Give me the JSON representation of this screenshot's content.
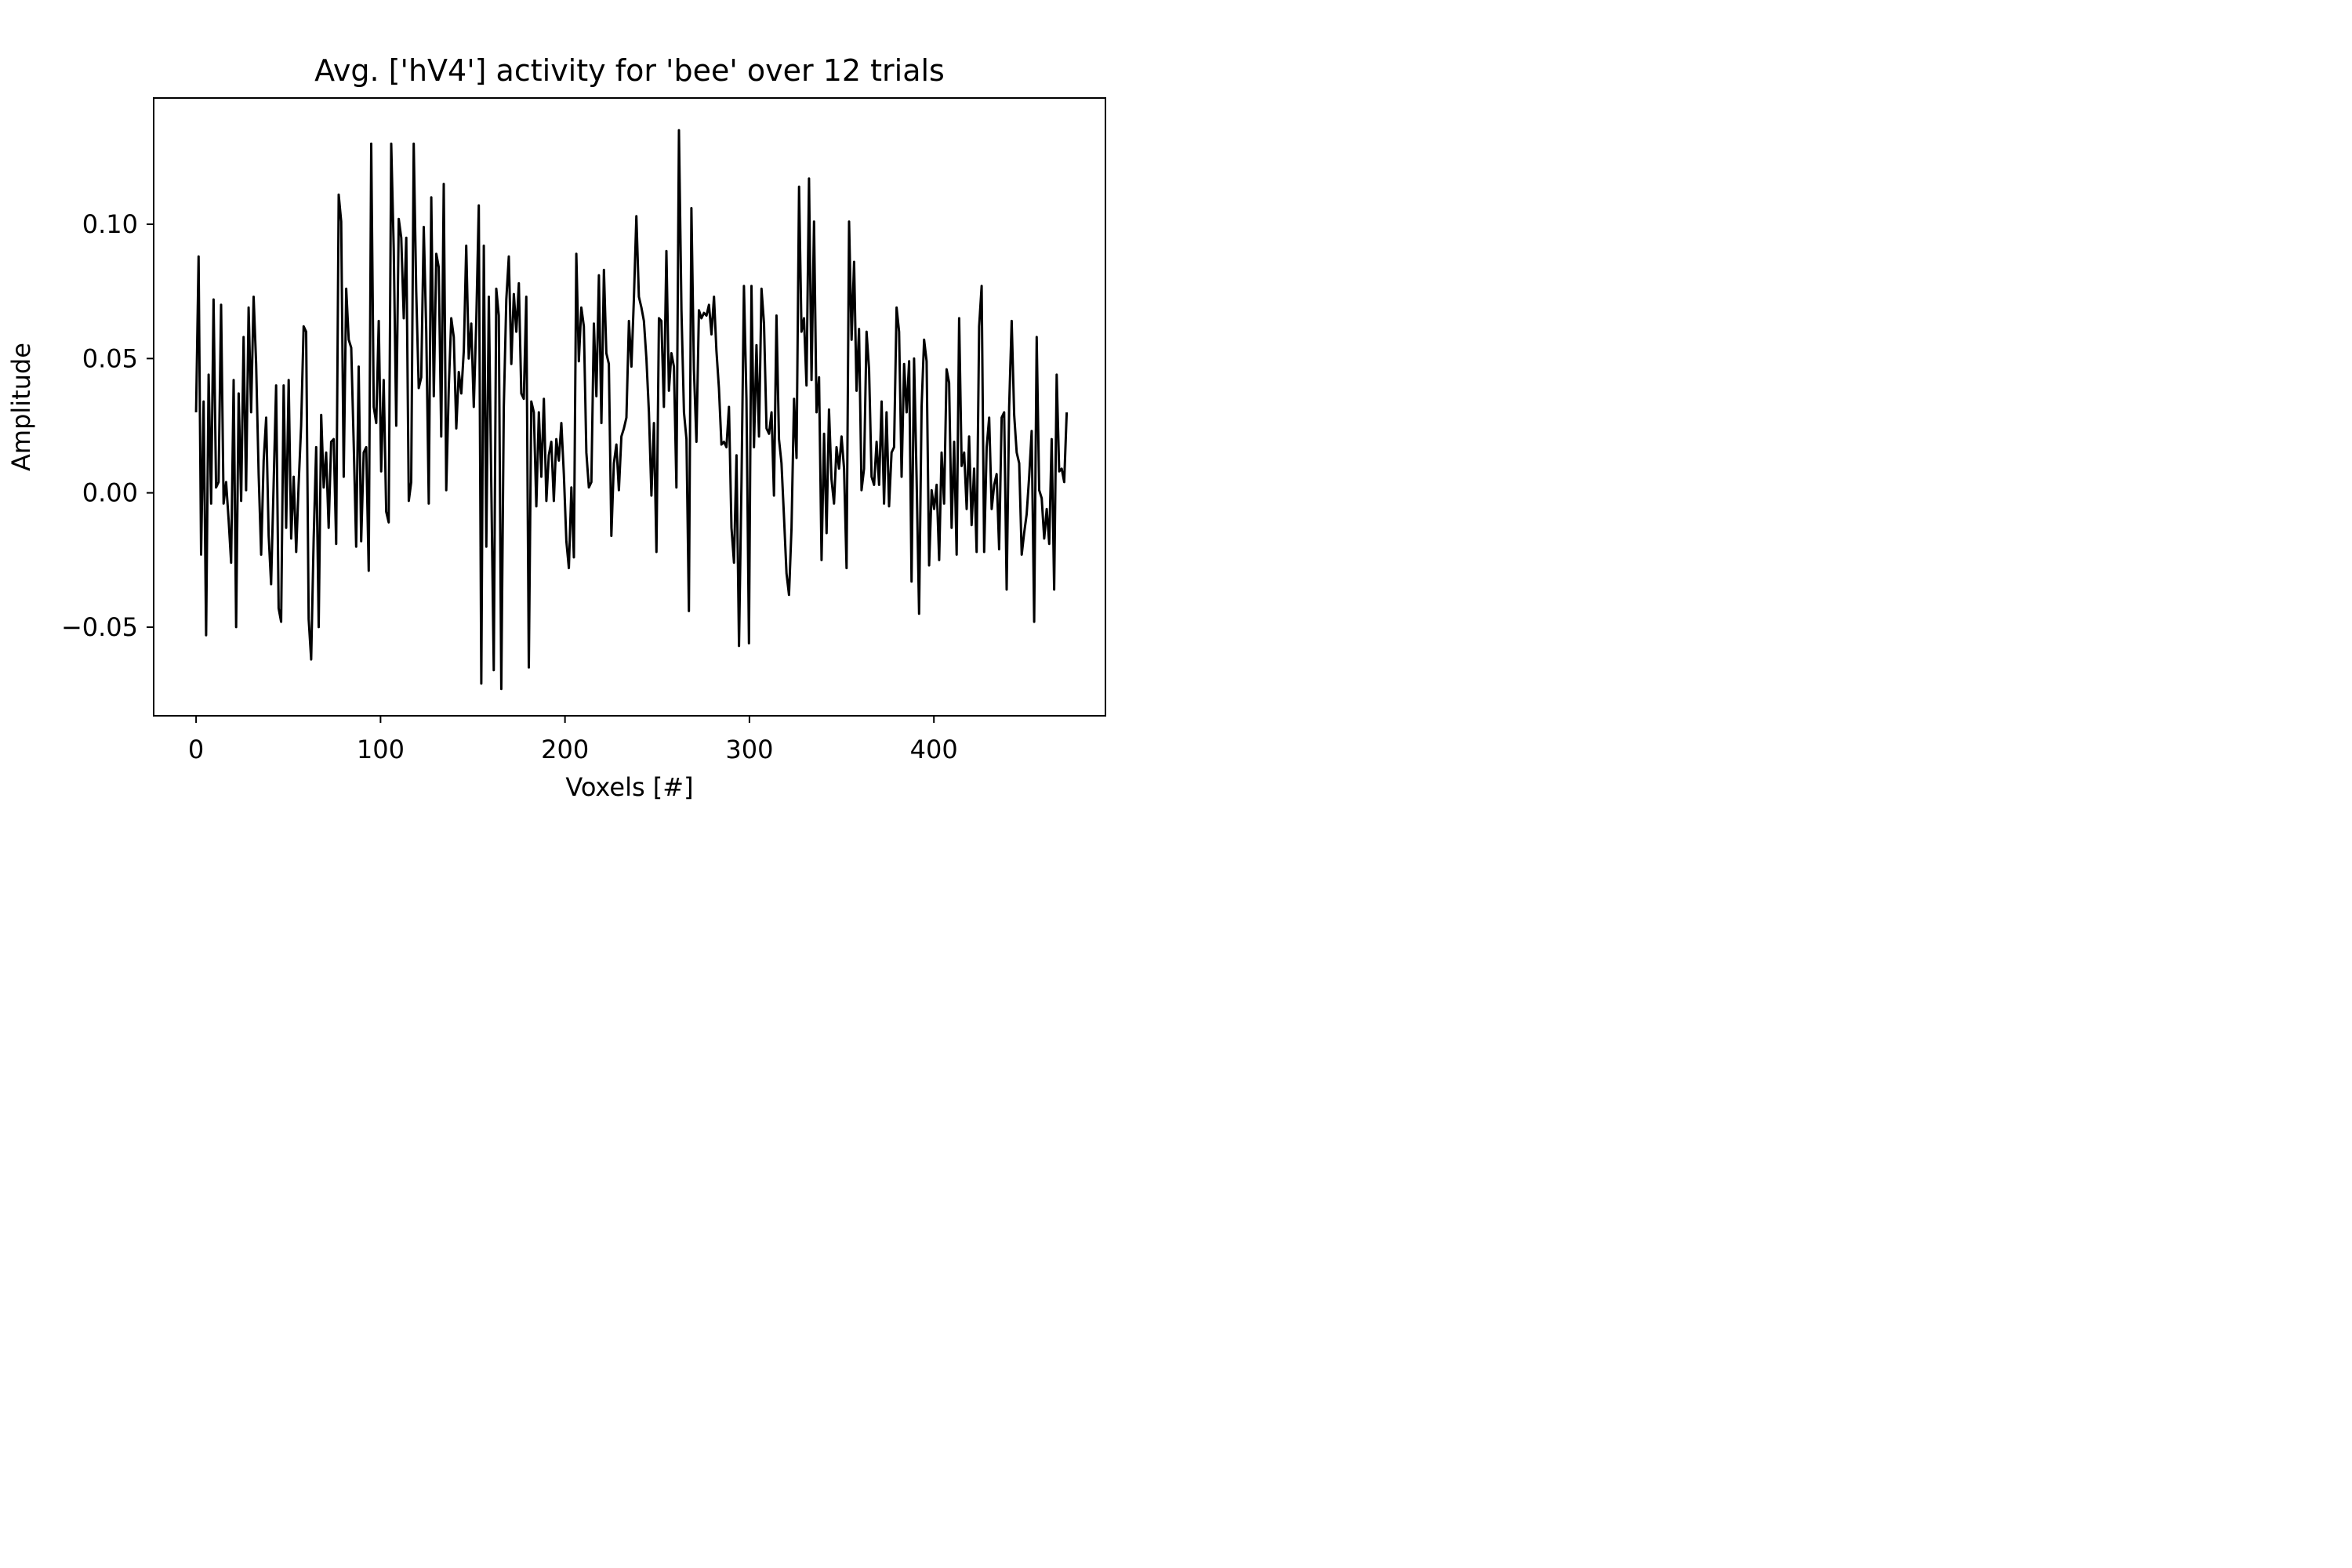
{
  "chart_data": {
    "type": "line",
    "title": "Avg. ['hV4'] activity for 'bee' over 12 trials",
    "xlabel": "Voxels [#]",
    "ylabel": "Amplitude",
    "xlim": [
      -23,
      493
    ],
    "ylim": [
      -0.083,
      0.147
    ],
    "xticks": [
      0,
      100,
      200,
      300,
      400
    ],
    "xtick_labels": [
      "0",
      "100",
      "200",
      "300",
      "400"
    ],
    "yticks": [
      -0.05,
      0.0,
      0.05,
      0.1
    ],
    "ytick_labels": [
      "−0.05",
      "0.00",
      "0.05",
      "0.10"
    ],
    "grid": false,
    "legend": false,
    "series": [
      {
        "color": "#000000",
        "x_start": 0,
        "x_step": 1,
        "y": [
          0.03,
          0.088,
          -0.023,
          0.034,
          -0.053,
          0.044,
          -0.004,
          0.072,
          0.002,
          0.004,
          0.07,
          -0.004,
          0.004,
          -0.01,
          -0.026,
          0.042,
          -0.05,
          0.037,
          -0.003,
          0.058,
          0.001,
          0.069,
          0.03,
          0.073,
          0.048,
          0.007,
          -0.023,
          0.012,
          0.028,
          -0.016,
          -0.034,
          0.003,
          0.04,
          -0.043,
          -0.048,
          0.04,
          -0.013,
          0.042,
          -0.017,
          0.006,
          -0.022,
          0.003,
          0.025,
          0.062,
          0.06,
          -0.047,
          -0.062,
          -0.017,
          0.017,
          -0.05,
          0.029,
          0.002,
          0.015,
          -0.013,
          0.019,
          0.02,
          -0.019,
          0.111,
          0.101,
          0.006,
          0.076,
          0.057,
          0.054,
          0.019,
          -0.02,
          0.047,
          -0.018,
          0.015,
          0.017,
          -0.029,
          0.13,
          0.032,
          0.026,
          0.064,
          0.008,
          0.042,
          -0.007,
          -0.011,
          0.13,
          0.091,
          0.025,
          0.102,
          0.095,
          0.065,
          0.095,
          -0.003,
          0.004,
          0.13,
          0.075,
          0.039,
          0.043,
          0.099,
          0.06,
          -0.004,
          0.11,
          0.036,
          0.089,
          0.084,
          0.021,
          0.115,
          0.001,
          0.039,
          0.065,
          0.058,
          0.024,
          0.045,
          0.037,
          0.053,
          0.092,
          0.05,
          0.063,
          0.032,
          0.064,
          0.107,
          -0.071,
          0.092,
          -0.02,
          0.073,
          0.002,
          -0.066,
          0.076,
          0.066,
          -0.073,
          0.032,
          0.072,
          0.088,
          0.048,
          0.074,
          0.06,
          0.078,
          0.037,
          0.035,
          0.073,
          -0.065,
          0.034,
          0.03,
          -0.005,
          0.03,
          0.006,
          0.035,
          -0.003,
          0.014,
          0.019,
          -0.003,
          0.02,
          0.012,
          0.026,
          0.007,
          -0.018,
          -0.028,
          0.002,
          -0.024,
          0.089,
          0.049,
          0.069,
          0.062,
          0.015,
          0.002,
          0.004,
          0.063,
          0.036,
          0.081,
          0.026,
          0.083,
          0.052,
          0.048,
          -0.016,
          0.011,
          0.018,
          0.001,
          0.021,
          0.024,
          0.028,
          0.064,
          0.047,
          0.072,
          0.103,
          0.073,
          0.069,
          0.064,
          0.05,
          0.03,
          -0.001,
          0.026,
          -0.022,
          0.065,
          0.064,
          0.032,
          0.09,
          0.038,
          0.052,
          0.047,
          0.002,
          0.135,
          0.068,
          0.03,
          0.02,
          -0.044,
          0.106,
          0.046,
          0.019,
          0.068,
          0.065,
          0.067,
          0.066,
          0.07,
          0.059,
          0.073,
          0.053,
          0.039,
          0.018,
          0.019,
          0.017,
          0.032,
          -0.013,
          -0.026,
          0.014,
          -0.057,
          0.004,
          0.077,
          0.035,
          -0.056,
          0.077,
          0.017,
          0.055,
          0.021,
          0.076,
          0.063,
          0.024,
          0.022,
          0.03,
          -0.001,
          0.066,
          0.02,
          0.011,
          -0.009,
          -0.03,
          -0.038,
          -0.013,
          0.035,
          0.013,
          0.114,
          0.06,
          0.065,
          0.04,
          0.117,
          0.042,
          0.101,
          0.03,
          0.043,
          -0.025,
          0.022,
          -0.015,
          0.031,
          0.005,
          -0.004,
          0.017,
          0.009,
          0.021,
          0.009,
          -0.028,
          0.101,
          0.057,
          0.086,
          0.038,
          0.061,
          0.001,
          0.009,
          0.06,
          0.046,
          0.006,
          0.003,
          0.019,
          0.003,
          0.034,
          -0.004,
          0.03,
          -0.005,
          0.015,
          0.017,
          0.069,
          0.06,
          0.006,
          0.048,
          0.03,
          0.049,
          -0.033,
          0.05,
          0.006,
          -0.045,
          0.032,
          0.057,
          0.049,
          -0.027,
          0.001,
          -0.006,
          0.003,
          -0.025,
          0.015,
          -0.004,
          0.046,
          0.041,
          -0.013,
          0.019,
          -0.023,
          0.065,
          0.01,
          0.015,
          -0.006,
          0.021,
          -0.012,
          0.009,
          -0.022,
          0.062,
          0.077,
          -0.022,
          0.017,
          0.028,
          -0.006,
          0.003,
          0.007,
          -0.021,
          0.028,
          0.03,
          -0.036,
          0.032,
          0.064,
          0.029,
          0.015,
          0.011,
          -0.023,
          -0.015,
          -0.008,
          0.006,
          0.023,
          -0.048,
          0.058,
          0.001,
          -0.002,
          -0.017,
          -0.006,
          -0.019,
          0.02,
          -0.036,
          0.044,
          0.008,
          0.009,
          0.004,
          0.03
        ]
      }
    ]
  }
}
